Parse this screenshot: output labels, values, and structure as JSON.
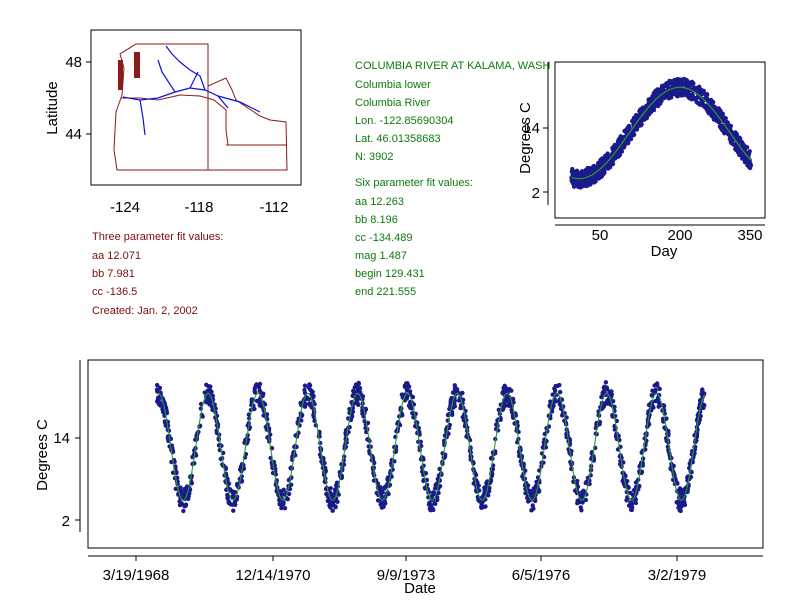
{
  "station": {
    "name": "COLUMBIA RIVER AT KALAMA, WASH",
    "lines": [
      "Columbia lower",
      "Columbia River",
      "Lon. -122.85690304",
      "Lat. 46.01358683",
      "N: 3902"
    ],
    "six_title": "Six parameter fit values:",
    "six_values": [
      "aa 12.263",
      "bb 8.196",
      "cc -134.489",
      "mag 1.487",
      "begin 129.431",
      "end 221.555"
    ]
  },
  "three_fit": {
    "title": "Three parameter fit values:",
    "values": [
      "aa 12.071",
      "bb 7.981",
      "cc -136.5"
    ],
    "created": "Created:   Jan. 2, 2002"
  },
  "colors": {
    "data": "#1a1a8c",
    "fit_green": "#2e9a2e",
    "map_border": "#8b1a1a",
    "map_river": "#1010e0",
    "text_green": "#0f7a0f",
    "text_maroon": "#7a0f0f"
  },
  "chart_data": [
    {
      "type": "map",
      "ylabel": "Latitude",
      "x_ticks": [
        "-124",
        "-118",
        "-112"
      ],
      "y_ticks": [
        "48",
        "44"
      ],
      "xlim": [
        -126.5,
        -110.5
      ],
      "ylim": [
        41.5,
        49.2
      ]
    },
    {
      "type": "scatter",
      "xlabel": "Day",
      "ylabel": "Degrees C",
      "x_ticks": [
        "50",
        "200",
        "350"
      ],
      "y_ticks": [
        "14",
        "2"
      ],
      "xlim": [
        0,
        380
      ],
      "ylim": [
        -3,
        25
      ],
      "fit": {
        "aa": 12.263,
        "bb": 8.196,
        "cc": -134.489
      }
    },
    {
      "type": "scatter",
      "xlabel": "Date",
      "ylabel": "Degrees C",
      "x_ticks": [
        "3/19/1968",
        "12/14/1970",
        "9/9/1973",
        "6/5/1976",
        "3/2/1979"
      ],
      "y_ticks": [
        "14",
        "2"
      ],
      "ylim": [
        -3,
        25
      ],
      "cycles": 11,
      "fit": {
        "aa": 12.071,
        "bb": 7.981,
        "cc": -136.5
      }
    }
  ]
}
